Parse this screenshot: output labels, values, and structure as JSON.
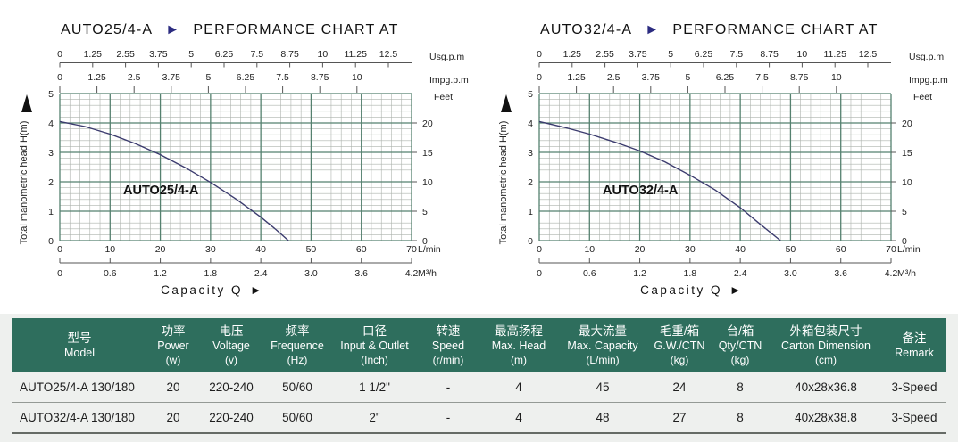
{
  "colors": {
    "grid_major": "#55816f",
    "grid_minor": "#adb3ad",
    "curve": "#3b3b6e",
    "axis_line": "#555555",
    "text": "#222222",
    "arrow_navy": "#2b2b80",
    "arrow_black": "#111111",
    "table_header_bg": "#2e6e5d",
    "table_header_text": "#ffffff",
    "table_section_bg": "#eef0ee"
  },
  "chart_data": [
    {
      "type": "line",
      "title_model": "AUTO25/4-A",
      "title_arrow": "►",
      "title_text": "PERFORMANCE CHART AT",
      "curve_label": "AUTO25/4-A",
      "x_top_usgpm": {
        "unit": "Usg.p.m",
        "ticks": [
          "0",
          "1.25",
          "2.55",
          "3.75",
          "5",
          "6.25",
          "7.5",
          "8.75",
          "10",
          "11.25",
          "12.5"
        ]
      },
      "x_top_impgpm": {
        "unit": "Impg.p.m",
        "ticks": [
          "0",
          "1.25",
          "2.5",
          "3.75",
          "5",
          "6.25",
          "7.5",
          "8.75",
          "10"
        ]
      },
      "y_left": {
        "label": "Total manometric head H(m)",
        "ticks": [
          "5",
          "4",
          "3",
          "2",
          "1",
          "0"
        ],
        "range": [
          0,
          5
        ]
      },
      "y_right_feet": {
        "unit": "Feet",
        "ticks": [
          "20",
          "15",
          "10",
          "5",
          "0"
        ]
      },
      "x_lmin": {
        "unit": "L/min",
        "ticks": [
          "0",
          "10",
          "20",
          "30",
          "40",
          "50",
          "60",
          "70"
        ],
        "range": [
          0,
          70
        ]
      },
      "x_m3h": {
        "unit": "M³/h",
        "ticks": [
          "0",
          "0.6",
          "1.2",
          "1.8",
          "2.4",
          "3.0",
          "3.6",
          "4.2"
        ]
      },
      "x_axis_label": "Capacity Q",
      "x_axis_arrow": "►",
      "grid": {
        "minor_x_step_lmin": 2,
        "minor_y_step_m": 0.2,
        "major_x_step_lmin": 10,
        "major_y_step_m": 1
      },
      "series": [
        {
          "name": "AUTO25/4-A",
          "points": [
            [
              0,
              4.05
            ],
            [
              5,
              3.88
            ],
            [
              10,
              3.62
            ],
            [
              15,
              3.3
            ],
            [
              20,
              2.92
            ],
            [
              25,
              2.48
            ],
            [
              30,
              1.98
            ],
            [
              35,
              1.42
            ],
            [
              40,
              0.8
            ],
            [
              43,
              0.38
            ],
            [
              45.5,
              0
            ]
          ]
        }
      ]
    },
    {
      "type": "line",
      "title_model": "AUTO32/4-A",
      "title_arrow": "►",
      "title_text": "PERFORMANCE CHART AT",
      "curve_label": "AUTO32/4-A",
      "x_top_usgpm": {
        "unit": "Usg.p.m",
        "ticks": [
          "0",
          "1.25",
          "2.55",
          "3.75",
          "5",
          "6.25",
          "7.5",
          "8.75",
          "10",
          "11.25",
          "12.5"
        ]
      },
      "x_top_impgpm": {
        "unit": "Impg.p.m",
        "ticks": [
          "0",
          "1.25",
          "2.5",
          "3.75",
          "5",
          "6.25",
          "7.5",
          "8.75",
          "10"
        ]
      },
      "y_left": {
        "label": "Total manometric head H(m)",
        "ticks": [
          "5",
          "4",
          "3",
          "2",
          "1",
          "0"
        ],
        "range": [
          0,
          5
        ]
      },
      "y_right_feet": {
        "unit": "Feet",
        "ticks": [
          "20",
          "15",
          "10",
          "5",
          "0"
        ]
      },
      "x_lmin": {
        "unit": "L/min",
        "ticks": [
          "0",
          "10",
          "20",
          "30",
          "40",
          "50",
          "60",
          "70"
        ],
        "range": [
          0,
          70
        ]
      },
      "x_m3h": {
        "unit": "M³/h",
        "ticks": [
          "0",
          "0.6",
          "1.2",
          "1.8",
          "2.4",
          "3.0",
          "3.6",
          "4.2"
        ]
      },
      "x_axis_label": "Capacity Q",
      "x_axis_arrow": "►",
      "grid": {
        "minor_x_step_lmin": 2,
        "minor_y_step_m": 0.2,
        "major_x_step_lmin": 10,
        "major_y_step_m": 1
      },
      "series": [
        {
          "name": "AUTO32/4-A",
          "points": [
            [
              0,
              4.05
            ],
            [
              5,
              3.85
            ],
            [
              10,
              3.62
            ],
            [
              15,
              3.35
            ],
            [
              20,
              3.05
            ],
            [
              25,
              2.68
            ],
            [
              30,
              2.22
            ],
            [
              35,
              1.72
            ],
            [
              40,
              1.12
            ],
            [
              44,
              0.55
            ],
            [
              48,
              0
            ]
          ]
        }
      ]
    }
  ],
  "table": {
    "columns": [
      {
        "zh": "型号",
        "en": "Model",
        "unit": ""
      },
      {
        "zh": "功率",
        "en": "Power",
        "unit": "(w)"
      },
      {
        "zh": "电压",
        "en": "Voltage",
        "unit": "(v)"
      },
      {
        "zh": "频率",
        "en": "Frequence",
        "unit": "(Hz)"
      },
      {
        "zh": "口径",
        "en": "Input & Outlet",
        "unit": "(Inch)"
      },
      {
        "zh": "转速",
        "en": "Speed",
        "unit": "(r/min)"
      },
      {
        "zh": "最高扬程",
        "en": "Max. Head",
        "unit": "(m)"
      },
      {
        "zh": "最大流量",
        "en": "Max. Capacity",
        "unit": "(L/min)"
      },
      {
        "zh": "毛重/箱",
        "en": "G.W./CTN",
        "unit": "(kg)"
      },
      {
        "zh": "台/箱",
        "en": "Qty/CTN",
        "unit": "(kg)"
      },
      {
        "zh": "外箱包装尺寸",
        "en": "Carton Dimension",
        "unit": "(cm)"
      },
      {
        "zh": "备注",
        "en": "Remark",
        "unit": ""
      }
    ],
    "rows": [
      [
        "AUTO25/4-A 130/180",
        "20",
        "220-240",
        "50/60",
        "1 1/2\"",
        "-",
        "4",
        "45",
        "24",
        "8",
        "40x28x36.8",
        "3-Speed"
      ],
      [
        "AUTO32/4-A 130/180",
        "20",
        "220-240",
        "50/60",
        "2\"",
        "-",
        "4",
        "48",
        "27",
        "8",
        "40x28x38.8",
        "3-Speed"
      ]
    ]
  }
}
